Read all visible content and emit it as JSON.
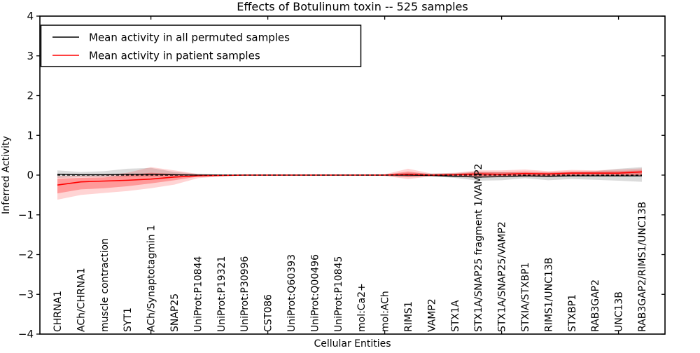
{
  "figure": {
    "title": "Effects of Botulinum toxin -- 525 samples"
  },
  "chart_data": {
    "type": "line",
    "title": "Effects of Botulinum toxin -- 525 samples",
    "xlabel": "Cellular Entities",
    "ylabel": "Inferred Activity",
    "ylim": [
      -4,
      4
    ],
    "grid": false,
    "background": "#ffffff",
    "legend_position": "upper left",
    "yticks": [
      4,
      3,
      2,
      1,
      0,
      -1,
      -2,
      -3,
      -4
    ],
    "ytick_labels": [
      "4",
      "3",
      "2",
      "1",
      "0",
      "−1",
      "−2",
      "−3",
      "−4"
    ],
    "xtick_indices": [
      4,
      9,
      14,
      19,
      24
    ],
    "categories": [
      "CHRNA1",
      "ACh/CHRNA1",
      "muscle contraction",
      "SYT1",
      "ACh/Synaptotagmin 1",
      "SNAP25",
      "UniProt:P10844",
      "UniProt:P19321",
      "UniProt:P30996",
      "CST086",
      "UniProt:Q60393",
      "UniProt:Q00496",
      "UniProt:P10845",
      "mol:Ca2+",
      "mol:ACh",
      "RIMS1",
      "VAMP2",
      "STX1A",
      "STX1A/SNAP25 fragment 1/VAMP2",
      "STX1A/SNAP25/VAMP2",
      "STXIA/STXBP1",
      "RIMS1/UNC13B",
      "STXBP1",
      "RAB3GAP2",
      "UNC13B",
      "RAB3GAP2/RIMS1/UNC13B"
    ],
    "series": [
      {
        "name": "Mean activity in all permuted samples",
        "color": "#000000",
        "style": "solid",
        "values": [
          0.02,
          0.01,
          0.01,
          0.02,
          0.02,
          0.01,
          0.0,
          0.0,
          0.0,
          0.0,
          0.0,
          0.0,
          0.0,
          0.0,
          0.0,
          0.0,
          -0.01,
          -0.03,
          -0.05,
          -0.04,
          -0.02,
          -0.03,
          -0.02,
          -0.02,
          -0.02,
          -0.02
        ]
      },
      {
        "name": "Mean activity in patient samples",
        "color": "#ff0000",
        "style": "solid",
        "values": [
          -0.25,
          -0.17,
          -0.15,
          -0.13,
          -0.1,
          -0.05,
          -0.02,
          -0.01,
          0.0,
          0.0,
          0.0,
          0.0,
          0.0,
          0.0,
          0.0,
          0.02,
          0.0,
          0.01,
          0.03,
          0.02,
          0.04,
          0.03,
          0.05,
          0.05,
          0.05,
          0.08
        ]
      }
    ],
    "zero_line": {
      "value": 0,
      "color": "#000000",
      "style": "dashed"
    },
    "bands": [
      {
        "name": "permuted-samples-confidence-band",
        "color": "#000000",
        "opacity": 0.14,
        "lo": [
          -0.07,
          -0.05,
          -0.05,
          -0.04,
          -0.04,
          -0.03,
          -0.02,
          -0.01,
          -0.01,
          -0.01,
          -0.01,
          -0.01,
          -0.01,
          -0.01,
          -0.02,
          -0.05,
          -0.03,
          -0.07,
          -0.14,
          -0.13,
          -0.08,
          -0.13,
          -0.1,
          -0.12,
          -0.14,
          -0.17
        ],
        "hi": [
          0.12,
          0.08,
          0.1,
          0.16,
          0.18,
          0.08,
          0.03,
          0.01,
          0.01,
          0.01,
          0.01,
          0.01,
          0.01,
          0.01,
          0.02,
          0.06,
          0.04,
          0.05,
          0.08,
          0.08,
          0.06,
          0.06,
          0.08,
          0.1,
          0.16,
          0.2
        ]
      },
      {
        "name": "patient-samples-confidence-band-outer",
        "color": "#ff0000",
        "opacity": 0.17,
        "lo": [
          -0.62,
          -0.5,
          -0.45,
          -0.4,
          -0.33,
          -0.24,
          -0.08,
          -0.03,
          -0.01,
          -0.01,
          -0.01,
          -0.01,
          -0.01,
          -0.01,
          -0.02,
          -0.1,
          -0.03,
          -0.04,
          -0.06,
          -0.05,
          -0.04,
          -0.05,
          -0.02,
          -0.02,
          -0.02,
          -0.02
        ],
        "hi": [
          -0.02,
          -0.02,
          -0.01,
          0.06,
          0.2,
          0.12,
          0.03,
          0.01,
          0.01,
          0.01,
          0.01,
          0.01,
          0.01,
          0.01,
          0.02,
          0.16,
          0.04,
          0.06,
          0.12,
          0.12,
          0.14,
          0.1,
          0.13,
          0.12,
          0.14,
          0.17
        ],
        "name_note": ""
      },
      {
        "name": "patient-samples-confidence-band-inner",
        "color": "#ff0000",
        "opacity": 0.28,
        "lo": [
          -0.46,
          -0.36,
          -0.33,
          -0.28,
          -0.21,
          -0.13,
          -0.04,
          -0.02,
          -0.01,
          -0.01,
          -0.01,
          -0.01,
          -0.01,
          -0.01,
          -0.01,
          -0.05,
          -0.02,
          -0.02,
          -0.03,
          -0.02,
          -0.02,
          -0.02,
          -0.01,
          -0.01,
          -0.01,
          0.0
        ],
        "hi": [
          -0.09,
          -0.07,
          -0.06,
          0.0,
          0.06,
          0.03,
          0.01,
          0.01,
          0.01,
          0.01,
          0.01,
          0.01,
          0.01,
          0.01,
          0.01,
          0.09,
          0.02,
          0.03,
          0.08,
          0.07,
          0.09,
          0.07,
          0.09,
          0.09,
          0.1,
          0.12
        ]
      }
    ],
    "legend": [
      {
        "label": "Mean activity in all permuted samples",
        "color": "#000000"
      },
      {
        "label": "Mean activity in patient samples",
        "color": "#ff0000"
      }
    ]
  }
}
